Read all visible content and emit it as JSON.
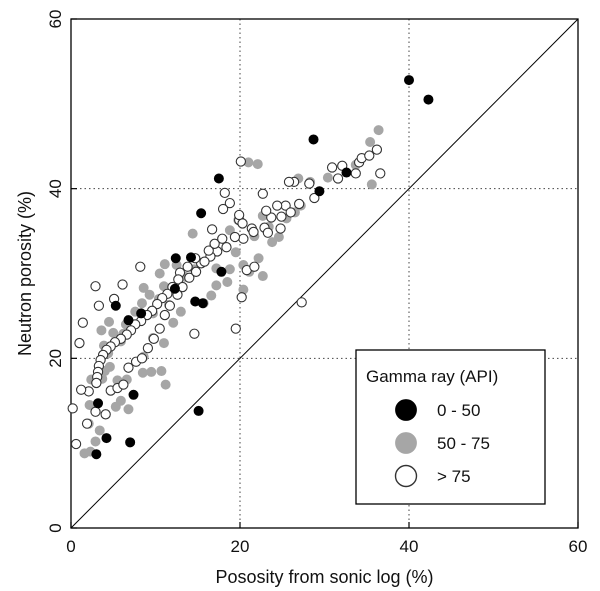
{
  "chart_data": {
    "type": "scatter",
    "xlabel": "Pososity from sonic log (%)",
    "ylabel": "Neutron porosity (%)",
    "xlim": [
      0,
      60
    ],
    "ylim": [
      0,
      60
    ],
    "xticks": [
      "0",
      "20",
      "40",
      "60"
    ],
    "yticks": [
      "0",
      "20",
      "40",
      "60"
    ],
    "grid": "dotted at 20 and 40",
    "reference_line": "y = x",
    "legend": {
      "title": "Gamma ray (API)",
      "placement": "bottom-right",
      "entries": [
        {
          "label": "0 - 50",
          "style": "filled-black"
        },
        {
          "label": "50 - 75",
          "style": "filled-gray"
        },
        {
          "label": "> 75",
          "style": "open-circle"
        }
      ]
    },
    "colors": {
      "black": "#000000",
      "gray": "#a6a6a6",
      "open_stroke": "#333333"
    },
    "series": [
      {
        "name": "0 - 50",
        "style": "filled-black",
        "points": [
          [
            40.0,
            52.8
          ],
          [
            42.3,
            50.5
          ],
          [
            28.7,
            45.8
          ],
          [
            17.5,
            41.2
          ],
          [
            32.6,
            41.9
          ],
          [
            29.4,
            39.7
          ],
          [
            15.4,
            37.1
          ],
          [
            12.4,
            31.8
          ],
          [
            14.2,
            31.9
          ],
          [
            17.8,
            30.2
          ],
          [
            12.3,
            28.2
          ],
          [
            14.7,
            26.7
          ],
          [
            15.6,
            26.5
          ],
          [
            5.3,
            26.2
          ],
          [
            6.8,
            24.5
          ],
          [
            8.3,
            25.3
          ],
          [
            7.4,
            15.7
          ],
          [
            3.2,
            14.7
          ],
          [
            3.0,
            8.7
          ],
          [
            4.2,
            10.6
          ],
          [
            7.0,
            10.1
          ],
          [
            15.1,
            13.8
          ]
        ]
      },
      {
        "name": "50 - 75",
        "style": "filled-gray",
        "points": [
          [
            36.4,
            46.9
          ],
          [
            35.4,
            45.5
          ],
          [
            33.7,
            42.8
          ],
          [
            35.6,
            40.5
          ],
          [
            30.4,
            41.3
          ],
          [
            28.3,
            40.8
          ],
          [
            26.9,
            41.2
          ],
          [
            21.0,
            43.1
          ],
          [
            22.1,
            42.9
          ],
          [
            14.4,
            34.7
          ],
          [
            18.8,
            35.1
          ],
          [
            19.8,
            36.3
          ],
          [
            22.7,
            36.8
          ],
          [
            26.5,
            37.2
          ],
          [
            25.5,
            36.5
          ],
          [
            24.6,
            34.3
          ],
          [
            23.8,
            33.7
          ],
          [
            21.7,
            34.4
          ],
          [
            22.2,
            31.8
          ],
          [
            20.4,
            31.0
          ],
          [
            19.5,
            32.5
          ],
          [
            18.8,
            30.5
          ],
          [
            17.2,
            30.6
          ],
          [
            16.9,
            33.2
          ],
          [
            15.8,
            31.4
          ],
          [
            14.6,
            30.5
          ],
          [
            13.5,
            29.6
          ],
          [
            12.5,
            31.0
          ],
          [
            11.1,
            31.1
          ],
          [
            10.5,
            30.0
          ],
          [
            11.0,
            28.5
          ],
          [
            10.4,
            27.0
          ],
          [
            8.6,
            28.3
          ],
          [
            9.3,
            27.5
          ],
          [
            8.4,
            26.5
          ],
          [
            9.7,
            25.3
          ],
          [
            7.6,
            25.5
          ],
          [
            7.0,
            24.2
          ],
          [
            6.5,
            24.0
          ],
          [
            6.2,
            22.9
          ],
          [
            5.9,
            22.0
          ],
          [
            5.0,
            23.0
          ],
          [
            4.5,
            24.3
          ],
          [
            3.6,
            23.3
          ],
          [
            3.9,
            21.5
          ],
          [
            4.4,
            20.6
          ],
          [
            4.6,
            19.0
          ],
          [
            4.0,
            18.5
          ],
          [
            3.7,
            17.6
          ],
          [
            5.5,
            17.4
          ],
          [
            6.6,
            17.5
          ],
          [
            8.5,
            18.3
          ],
          [
            9.5,
            18.4
          ],
          [
            10.7,
            18.5
          ],
          [
            11.2,
            16.9
          ],
          [
            8.6,
            20.2
          ],
          [
            9.7,
            22.4
          ],
          [
            11.0,
            21.8
          ],
          [
            12.1,
            24.2
          ],
          [
            13.0,
            25.5
          ],
          [
            11.6,
            26.3
          ],
          [
            2.4,
            17.5
          ],
          [
            2.2,
            14.5
          ],
          [
            2.1,
            12.3
          ],
          [
            3.4,
            11.5
          ],
          [
            2.9,
            10.2
          ],
          [
            1.6,
            8.8
          ],
          [
            2.3,
            9.0
          ],
          [
            5.3,
            14.3
          ],
          [
            6.8,
            14.0
          ],
          [
            5.9,
            15.0
          ],
          [
            15.7,
            26.5
          ],
          [
            16.6,
            27.4
          ],
          [
            17.2,
            28.6
          ],
          [
            18.5,
            29.0
          ],
          [
            20.4,
            28.1
          ],
          [
            21.1,
            30.2
          ],
          [
            22.7,
            29.7
          ],
          [
            23.4,
            35.5
          ],
          [
            27.2,
            38.0
          ]
        ]
      },
      {
        "name": "> 75",
        "style": "open-circle",
        "points": [
          [
            36.2,
            44.6
          ],
          [
            34.1,
            43.1
          ],
          [
            33.7,
            41.8
          ],
          [
            36.6,
            41.8
          ],
          [
            31.6,
            41.2
          ],
          [
            32.1,
            42.7
          ],
          [
            30.9,
            42.5
          ],
          [
            28.2,
            40.6
          ],
          [
            26.4,
            40.8
          ],
          [
            25.8,
            40.8
          ],
          [
            28.8,
            38.9
          ],
          [
            27.0,
            38.2
          ],
          [
            22.7,
            39.4
          ],
          [
            20.1,
            43.2
          ],
          [
            18.2,
            39.5
          ],
          [
            18.8,
            38.3
          ],
          [
            19.9,
            36.3
          ],
          [
            20.3,
            35.9
          ],
          [
            21.4,
            35.3
          ],
          [
            22.9,
            35.4
          ],
          [
            23.3,
            34.8
          ],
          [
            24.8,
            35.3
          ],
          [
            24.9,
            36.7
          ],
          [
            25.4,
            38.0
          ],
          [
            26.0,
            37.2
          ],
          [
            23.7,
            36.6
          ],
          [
            21.6,
            34.9
          ],
          [
            20.4,
            34.1
          ],
          [
            19.4,
            34.3
          ],
          [
            18.4,
            33.1
          ],
          [
            17.3,
            32.6
          ],
          [
            16.5,
            32.0
          ],
          [
            15.4,
            31.2
          ],
          [
            14.7,
            31.8
          ],
          [
            13.8,
            30.8
          ],
          [
            12.9,
            30.1
          ],
          [
            12.7,
            29.3
          ],
          [
            12.0,
            28.4
          ],
          [
            11.4,
            27.6
          ],
          [
            10.8,
            27.1
          ],
          [
            10.2,
            26.4
          ],
          [
            9.6,
            25.6
          ],
          [
            9.0,
            25.1
          ],
          [
            8.3,
            24.4
          ],
          [
            7.6,
            24.0
          ],
          [
            7.1,
            23.3
          ],
          [
            6.6,
            22.8
          ],
          [
            5.9,
            22.3
          ],
          [
            5.2,
            21.9
          ],
          [
            4.7,
            21.4
          ],
          [
            4.2,
            21.0
          ],
          [
            3.8,
            20.4
          ],
          [
            3.5,
            19.8
          ],
          [
            3.3,
            19.1
          ],
          [
            3.2,
            18.4
          ],
          [
            3.1,
            17.8
          ],
          [
            3.0,
            17.1
          ],
          [
            2.1,
            16.1
          ],
          [
            1.2,
            16.3
          ],
          [
            0.2,
            14.1
          ],
          [
            0.6,
            9.9
          ],
          [
            1.9,
            12.3
          ],
          [
            2.9,
            13.7
          ],
          [
            4.1,
            13.4
          ],
          [
            4.7,
            16.2
          ],
          [
            5.5,
            16.5
          ],
          [
            6.2,
            16.9
          ],
          [
            6.8,
            18.9
          ],
          [
            7.7,
            19.6
          ],
          [
            8.4,
            20.0
          ],
          [
            9.1,
            21.2
          ],
          [
            9.8,
            22.3
          ],
          [
            10.5,
            23.5
          ],
          [
            11.1,
            25.1
          ],
          [
            11.7,
            26.2
          ],
          [
            12.6,
            27.5
          ],
          [
            13.2,
            28.4
          ],
          [
            14.0,
            29.5
          ],
          [
            14.8,
            30.2
          ],
          [
            15.8,
            31.4
          ],
          [
            16.3,
            32.7
          ],
          [
            17.0,
            33.5
          ],
          [
            17.9,
            34.1
          ],
          [
            8.2,
            30.8
          ],
          [
            5.1,
            27.0
          ],
          [
            6.1,
            28.7
          ],
          [
            3.3,
            26.2
          ],
          [
            2.9,
            28.5
          ],
          [
            1.4,
            24.2
          ],
          [
            1.0,
            21.8
          ],
          [
            14.6,
            22.9
          ],
          [
            19.5,
            23.5
          ],
          [
            20.2,
            27.2
          ],
          [
            20.8,
            30.4
          ],
          [
            21.7,
            30.8
          ],
          [
            27.3,
            26.6
          ],
          [
            34.4,
            43.6
          ],
          [
            35.3,
            43.9
          ],
          [
            16.7,
            35.2
          ],
          [
            18.0,
            37.6
          ],
          [
            19.9,
            36.9
          ],
          [
            23.1,
            37.4
          ],
          [
            24.4,
            38.0
          ]
        ]
      }
    ]
  }
}
